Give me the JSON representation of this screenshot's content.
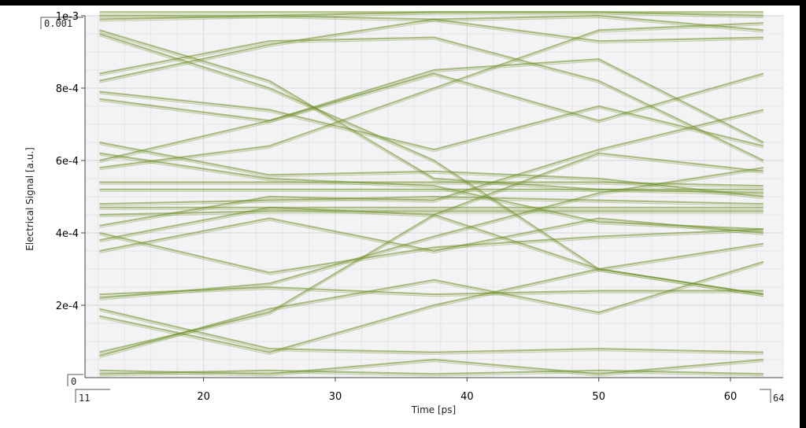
{
  "chart_data": {
    "type": "line",
    "title": "",
    "xlabel": "Time [ps]",
    "ylabel": "Electrical Signal [a.u.]",
    "xlim": [
      11,
      64
    ],
    "ylim": [
      0,
      0.001
    ],
    "x_range_labels": [
      "11",
      "64"
    ],
    "y_range_labels": [
      "0",
      "0.001"
    ],
    "x_ticks": [
      20,
      30,
      40,
      50,
      60
    ],
    "x_tick_labels": [
      "20",
      "30",
      "40",
      "50",
      "60"
    ],
    "y_ticks": [
      0.0002,
      0.0004,
      0.0006,
      0.0008,
      0.001
    ],
    "y_tick_labels": [
      "2e-4",
      "4e-4",
      "6e-4",
      "8e-4",
      "1e-3"
    ],
    "grid": true,
    "line_color": "#6b8e23",
    "x": [
      12.1,
      25,
      37.5,
      50,
      62.5
    ],
    "series": [
      {
        "values": [
          0.001,
          0.001,
          0.00099,
          0.001,
          0.00096
        ]
      },
      {
        "values": [
          0.00099,
          0.001,
          0.00101,
          0.00101,
          0.001
        ]
      },
      {
        "values": [
          0.00101,
          0.00101,
          0.00101,
          0.00101,
          0.00101
        ]
      },
      {
        "values": [
          0.00096,
          0.00082,
          0.00055,
          0.00052,
          0.00051
        ]
      },
      {
        "values": [
          0.00095,
          0.0008,
          0.0006,
          0.0003,
          0.00023
        ]
      },
      {
        "values": [
          0.00084,
          0.00093,
          0.00094,
          0.00082,
          0.0006
        ]
      },
      {
        "values": [
          0.00082,
          0.00092,
          0.00099,
          0.00093,
          0.00094
        ]
      },
      {
        "values": [
          0.00079,
          0.00074,
          0.00063,
          0.00075,
          0.00064
        ]
      },
      {
        "values": [
          0.00077,
          0.00071,
          0.00085,
          0.00088,
          0.00065
        ]
      },
      {
        "values": [
          0.00065,
          0.00056,
          0.00057,
          0.00055,
          0.0005
        ]
      },
      {
        "values": [
          0.00062,
          0.00055,
          0.00053,
          0.00043,
          0.00041
        ]
      },
      {
        "values": [
          0.0006,
          0.00071,
          0.00084,
          0.00071,
          0.00084
        ]
      },
      {
        "values": [
          0.00058,
          0.00064,
          0.0008,
          0.00096,
          0.00098
        ]
      },
      {
        "values": [
          0.00054,
          0.00054,
          0.00054,
          0.00054,
          0.00053
        ]
      },
      {
        "values": [
          0.00052,
          0.00052,
          0.00052,
          0.00052,
          0.00052
        ]
      },
      {
        "values": [
          0.00048,
          0.00049,
          0.0005,
          0.00049,
          0.00048
        ]
      },
      {
        "values": [
          0.00047,
          0.00047,
          0.00047,
          0.00047,
          0.00047
        ]
      },
      {
        "values": [
          0.00045,
          0.00046,
          0.00046,
          0.00046,
          0.00046
        ]
      },
      {
        "values": [
          0.00042,
          0.0005,
          0.00049,
          0.00063,
          0.00074
        ]
      },
      {
        "values": [
          0.0004,
          0.00029,
          0.00036,
          0.00039,
          0.00041
        ]
      },
      {
        "values": [
          0.00038,
          0.00047,
          0.00045,
          0.0003,
          0.00023
        ]
      },
      {
        "values": [
          0.00035,
          0.00044,
          0.00035,
          0.00044,
          0.0004
        ]
      },
      {
        "values": [
          0.00023,
          0.00025,
          0.00023,
          0.00024,
          0.00024
        ]
      },
      {
        "values": [
          0.00022,
          0.00026,
          0.00039,
          0.00051,
          0.00058
        ]
      },
      {
        "values": [
          0.00019,
          8e-05,
          7e-05,
          8e-05,
          7e-05
        ]
      },
      {
        "values": [
          0.00017,
          7e-05,
          0.0002,
          0.0003,
          0.00037
        ]
      },
      {
        "values": [
          7e-05,
          0.00018,
          0.00045,
          0.00062,
          0.00057
        ]
      },
      {
        "values": [
          6e-05,
          0.00019,
          0.00027,
          0.00018,
          0.00032
        ]
      },
      {
        "values": [
          2e-05,
          1e-05,
          5e-05,
          1e-05,
          5e-05
        ]
      },
      {
        "values": [
          1e-05,
          2e-05,
          1e-05,
          2e-05,
          1e-05
        ]
      }
    ]
  }
}
